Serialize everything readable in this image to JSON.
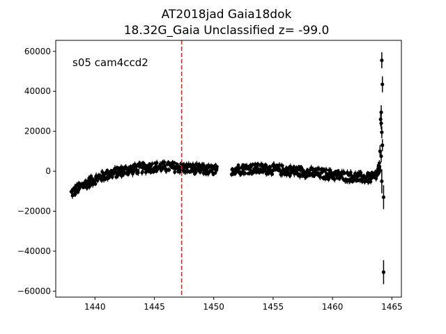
{
  "chart_data": {
    "type": "scatter",
    "title_lines": [
      "AT2018jad  Gaia18dok",
      "18.32G_Gaia Unclassified z= -99.0"
    ],
    "xlabel": "",
    "ylabel": "",
    "xlim": [
      1436.7,
      1465.8
    ],
    "ylim": [
      -63000,
      65500
    ],
    "x_ticks": [
      1440,
      1445,
      1450,
      1455,
      1460,
      1465
    ],
    "y_ticks": [
      -60000,
      -40000,
      -20000,
      0,
      20000,
      40000,
      60000
    ],
    "x_tick_labels": [
      "1440",
      "1445",
      "1450",
      "1455",
      "1460",
      "1465"
    ],
    "y_tick_labels": [
      "−60000",
      "−40000",
      "−20000",
      "0",
      "20000",
      "40000",
      "60000"
    ],
    "grid": false,
    "annotation": "s05 cam4ccd2",
    "vline": {
      "x": 1447.3,
      "color": "#d62728",
      "style": "dashed"
    },
    "series": [
      {
        "color": "#000000",
        "marker": "point-with-errorbar",
        "trend_points": [
          [
            1438.0,
            -11000
          ],
          [
            1438.5,
            -9000
          ],
          [
            1439.0,
            -7000
          ],
          [
            1439.5,
            -5500
          ],
          [
            1440.0,
            -4000
          ],
          [
            1440.5,
            -2800
          ],
          [
            1441.0,
            -1800
          ],
          [
            1441.5,
            -1000
          ],
          [
            1442.0,
            -300
          ],
          [
            1442.5,
            300
          ],
          [
            1443.0,
            800
          ],
          [
            1443.5,
            1200
          ],
          [
            1444.0,
            1600
          ],
          [
            1444.5,
            1900
          ],
          [
            1445.0,
            2100
          ],
          [
            1445.5,
            2200
          ],
          [
            1446.0,
            2200
          ],
          [
            1446.5,
            2100
          ],
          [
            1447.0,
            1900
          ],
          [
            1447.5,
            1600
          ],
          [
            1448.0,
            1300
          ],
          [
            1448.5,
            1100
          ],
          [
            1449.0,
            900
          ],
          [
            1449.5,
            700
          ],
          [
            1450.0,
            500
          ],
          [
            1450.3,
            300
          ],
          [
            1451.5,
            900
          ],
          [
            1452.0,
            1100
          ],
          [
            1452.5,
            1200
          ],
          [
            1453.0,
            1300
          ],
          [
            1453.5,
            1300
          ],
          [
            1454.0,
            1200
          ],
          [
            1454.5,
            1100
          ],
          [
            1455.0,
            900
          ],
          [
            1455.5,
            700
          ],
          [
            1456.0,
            500
          ],
          [
            1456.5,
            200
          ],
          [
            1457.0,
            0
          ],
          [
            1457.5,
            -300
          ],
          [
            1458.0,
            -600
          ],
          [
            1458.5,
            -900
          ],
          [
            1459.0,
            -1200
          ],
          [
            1459.5,
            -1500
          ],
          [
            1460.0,
            -1800
          ],
          [
            1460.5,
            -2100
          ],
          [
            1461.0,
            -2400
          ],
          [
            1461.5,
            -2700
          ],
          [
            1462.0,
            -3000
          ],
          [
            1462.5,
            -3200
          ],
          [
            1463.0,
            -3400
          ],
          [
            1463.5,
            -3000
          ],
          [
            1463.8,
            -1000
          ],
          [
            1464.0,
            3000
          ]
        ],
        "scatter_band": 2500,
        "outliers": [
          {
            "x": 1464.15,
            "y": 55500,
            "err": 4000
          },
          {
            "x": 1464.2,
            "y": 43500,
            "err": 4000
          },
          {
            "x": 1464.1,
            "y": 29500,
            "err": 3500
          },
          {
            "x": 1464.05,
            "y": 26000,
            "err": 3500
          },
          {
            "x": 1464.1,
            "y": 24000,
            "err": 3000
          },
          {
            "x": 1464.15,
            "y": 19500,
            "err": 3000
          },
          {
            "x": 1464.2,
            "y": 13000,
            "err": 3000
          },
          {
            "x": 1464.0,
            "y": 10000,
            "err": 3000
          },
          {
            "x": 1464.1,
            "y": 7500,
            "err": 3000
          },
          {
            "x": 1464.15,
            "y": -5000,
            "err": 6000
          },
          {
            "x": 1464.3,
            "y": -13000,
            "err": 6000
          },
          {
            "x": 1464.3,
            "y": -50500,
            "err": 6000
          }
        ]
      }
    ]
  }
}
